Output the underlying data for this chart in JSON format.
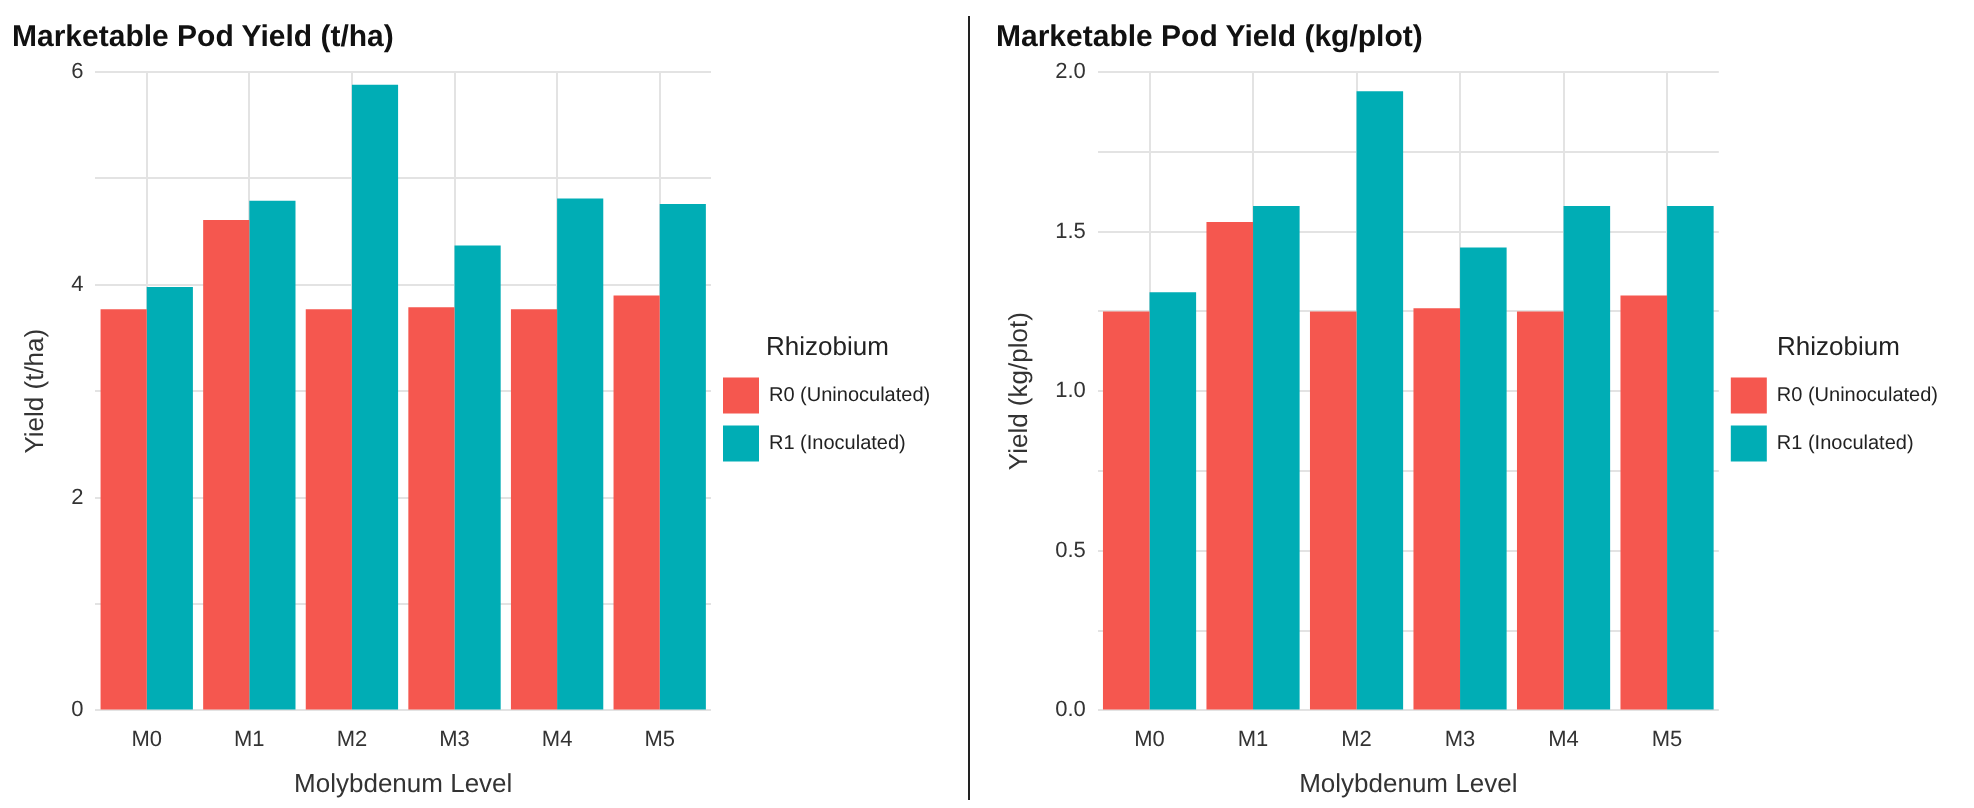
{
  "chart_data": [
    {
      "type": "bar",
      "title": "Marketable Pod Yield (t/ha)",
      "xlabel": "Molybdenum Level",
      "ylabel": "Yield (t/ha)",
      "legend_title": "Rhizobium",
      "categories": [
        "M0",
        "M1",
        "M2",
        "M3",
        "M4",
        "M5"
      ],
      "series": [
        {
          "name": "R0 (Uninoculated)",
          "color": "#f5574f",
          "values": [
            3.77,
            4.61,
            3.77,
            3.79,
            3.77,
            3.9
          ]
        },
        {
          "name": "R1 (Inoculated)",
          "color": "#00adb5",
          "values": [
            3.98,
            4.79,
            5.88,
            4.37,
            4.81,
            4.76
          ]
        }
      ],
      "ylim": [
        0,
        6
      ],
      "yticks": [
        0,
        {
          "value": 1,
          "label": null
        },
        2,
        {
          "value": 3,
          "label": null
        },
        4,
        {
          "value": 5,
          "label": null
        },
        6
      ],
      "grid": true,
      "legend": "right"
    },
    {
      "type": "bar",
      "title": "Marketable Pod Yield (kg/plot)",
      "xlabel": "Molybdenum Level",
      "ylabel": "Yield (kg/plot)",
      "legend_title": "Rhizobium",
      "categories": [
        "M0",
        "M1",
        "M2",
        "M3",
        "M4",
        "M5"
      ],
      "series": [
        {
          "name": "R0 (Uninoculated)",
          "color": "#f5574f",
          "values": [
            1.25,
            1.53,
            1.25,
            1.26,
            1.25,
            1.3
          ]
        },
        {
          "name": "R1 (Inoculated)",
          "color": "#00adb5",
          "values": [
            1.31,
            1.58,
            1.94,
            1.45,
            1.58,
            1.58
          ]
        }
      ],
      "ylim": [
        0,
        2
      ],
      "yticks": [
        {
          "value": 0,
          "label": "0.0"
        },
        {
          "value": 0.25,
          "label": null
        },
        {
          "value": 0.5,
          "label": "0.5"
        },
        {
          "value": 0.75,
          "label": null
        },
        {
          "value": 1,
          "label": "1.0"
        },
        {
          "value": 1.25,
          "label": null
        },
        {
          "value": 1.5,
          "label": "1.5"
        },
        {
          "value": 1.75,
          "label": null
        },
        {
          "value": 2,
          "label": "2.0"
        }
      ],
      "grid": true,
      "legend": "right"
    }
  ]
}
